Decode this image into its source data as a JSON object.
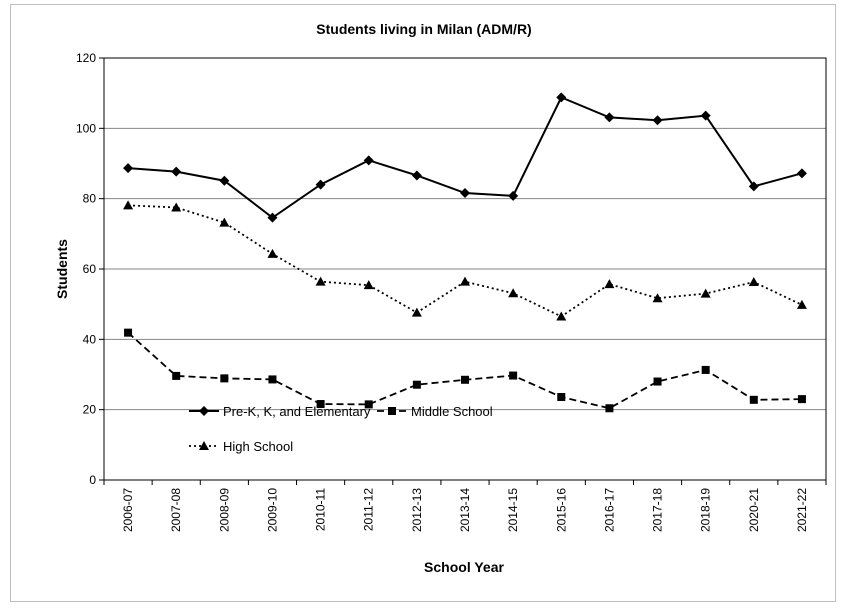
{
  "chart_data": {
    "type": "line",
    "title": "Students living in Milan (ADM/R)",
    "xlabel": "School Year",
    "ylabel": "Students",
    "ylim": [
      0,
      120
    ],
    "yticks": [
      0,
      20,
      40,
      60,
      80,
      100,
      120
    ],
    "grid": "horizontal",
    "legend_position": "inside-lower-left",
    "categories": [
      "2006-07",
      "2007-08",
      "2008-09",
      "2009-10",
      "2010-11",
      "2011-12",
      "2012-13",
      "2013-14",
      "2014-15",
      "2015-16",
      "2016-17",
      "2017-18",
      "2018-19",
      "2020-21",
      "2021-22"
    ],
    "series": [
      {
        "name": "Pre-K, K, and Elementary",
        "marker": "diamond",
        "line": "solid",
        "color": "#000000",
        "values": [
          88.7,
          87.7,
          85.1,
          74.6,
          84.0,
          90.9,
          86.6,
          81.6,
          80.8,
          108.8,
          103.1,
          102.3,
          103.6,
          83.5,
          87.2
        ]
      },
      {
        "name": "Middle School",
        "marker": "square",
        "line": "dashed",
        "color": "#000000",
        "values": [
          41.9,
          29.6,
          28.9,
          28.6,
          21.6,
          21.5,
          27.1,
          28.5,
          29.7,
          23.6,
          20.4,
          28.0,
          31.3,
          22.8,
          23.0
        ]
      },
      {
        "name": "High School",
        "marker": "triangle",
        "line": "dotted",
        "color": "#000000",
        "values": [
          78.1,
          77.5,
          73.2,
          64.3,
          56.4,
          55.4,
          47.6,
          56.4,
          53.1,
          46.5,
          55.7,
          51.7,
          53.0,
          56.3,
          49.8
        ]
      }
    ]
  }
}
